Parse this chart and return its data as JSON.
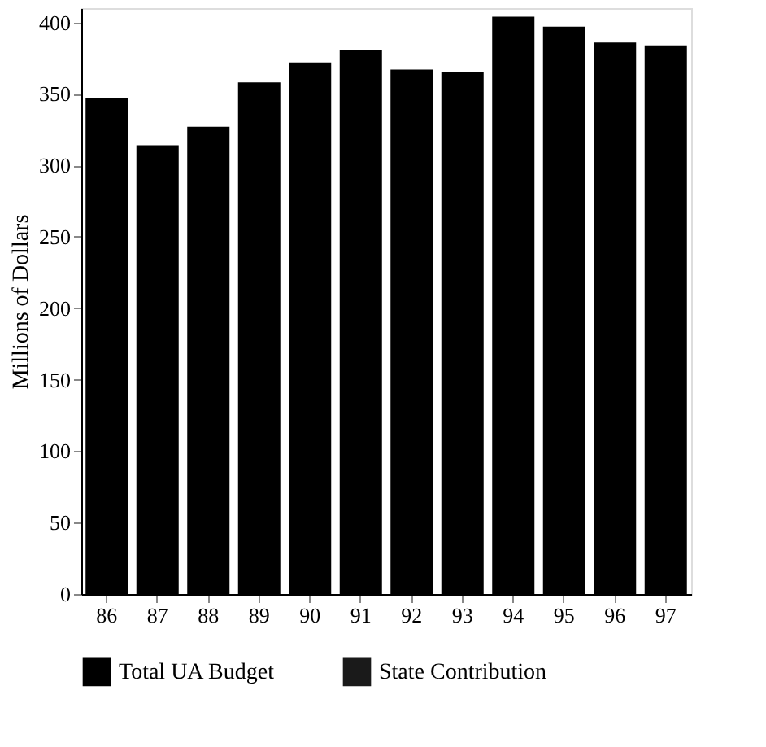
{
  "chart_data": {
    "type": "bar",
    "ylabel": "Millions of Dollars",
    "categories": [
      "86",
      "87",
      "88",
      "89",
      "90",
      "91",
      "92",
      "93",
      "94",
      "95",
      "96",
      "97"
    ],
    "series": [
      {
        "name": "Total UA Budget",
        "color": "#000000",
        "values": [
          347,
          314,
          327,
          358,
          372,
          381,
          367,
          365,
          404,
          397,
          386,
          384
        ]
      },
      {
        "name": "State Contribution",
        "color": "#1a1a1a",
        "values": [
          null,
          null,
          null,
          null,
          null,
          null,
          null,
          null,
          null,
          null,
          null,
          null
        ]
      }
    ],
    "ylim": [
      0,
      410
    ],
    "yticks": [
      0,
      50,
      100,
      150,
      200,
      250,
      300,
      350,
      400
    ],
    "grid": false,
    "legend": "bottom"
  }
}
